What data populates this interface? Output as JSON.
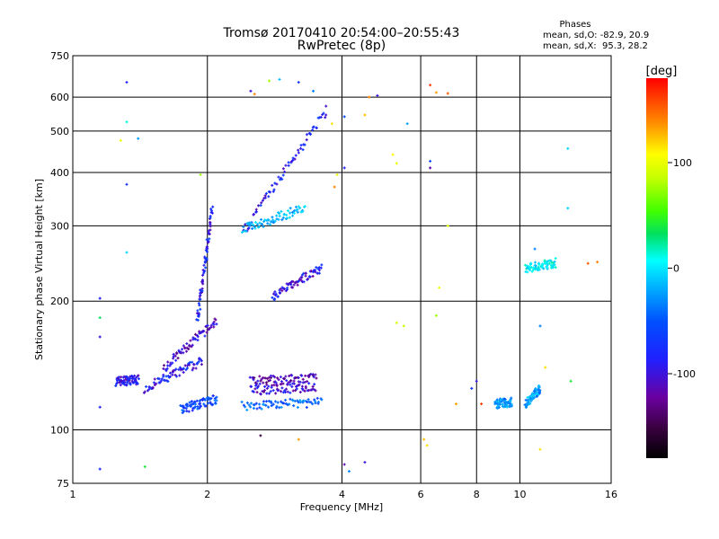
{
  "chart_data": {
    "type": "scatter",
    "title": "Tromsø 20170410 20:54:00–20:55:43",
    "subtitle": "RwPretec (8p)",
    "xlabel": "Frequency [MHz]",
    "ylabel": "Stationary phase Virtual Height [km]",
    "x_scale": "log",
    "y_scale": "log",
    "xlim": [
      1,
      16
    ],
    "ylim": [
      75,
      750
    ],
    "x_ticks": [
      1,
      2,
      4,
      6,
      8,
      10,
      16
    ],
    "x_tick_labels": [
      "1",
      "2",
      "4",
      "6",
      "8",
      "10",
      "16"
    ],
    "y_ticks": [
      75,
      100,
      200,
      300,
      400,
      500,
      600,
      750
    ],
    "y_tick_labels": [
      "75",
      "100",
      "200",
      "300",
      "400",
      "500",
      "600",
      "750"
    ],
    "grid": true,
    "phase_stats": {
      "heading": "Phases",
      "o_line": "mean, sd,O: -82.9, 20.9",
      "x_line": "mean, sd,X:  95.3, 28.2"
    },
    "colorbar": {
      "label": "[deg]",
      "ticks": [
        100,
        0,
        -100
      ],
      "tick_labels": [
        "100",
        "0",
        "-100"
      ],
      "range": [
        -180,
        180
      ],
      "colormap": "rainbow (black-purple-blue-cyan-green-yellow-orange-red)"
    },
    "traces": [
      {
        "x_range": [
          1.25,
          1.4
        ],
        "heights": [
          130,
          131
        ],
        "phase": -105
      },
      {
        "x_range": [
          1.45,
          1.95
        ],
        "heights": [
          125,
          145
        ],
        "phase": -100
      },
      {
        "x_range": [
          1.6,
          2.1
        ],
        "heights": [
          140,
          180
        ],
        "phase": -115
      },
      {
        "x_range": [
          1.9,
          2.05
        ],
        "heights": [
          180,
          330
        ],
        "phase": -100
      },
      {
        "x_range": [
          1.75,
          2.1
        ],
        "heights": [
          112,
          118
        ],
        "phase": -80
      },
      {
        "x_range": [
          2.4,
          3.6
        ],
        "heights": [
          114,
          116
        ],
        "phase": -70
      },
      {
        "x_range": [
          2.5,
          3.5
        ],
        "heights": [
          124,
          126
        ],
        "phase": -110
      },
      {
        "x_range": [
          2.5,
          3.5
        ],
        "heights": [
          130,
          132
        ],
        "phase": -120
      },
      {
        "x_range": [
          2.4,
          3.7
        ],
        "heights": [
          290,
          560
        ],
        "phase": -100
      },
      {
        "x_range": [
          2.8,
          3.6
        ],
        "heights": [
          205,
          240
        ],
        "phase": -105
      },
      {
        "x_range": [
          2.4,
          3.3
        ],
        "heights": [
          295,
          330
        ],
        "phase": -40
      },
      {
        "x_range": [
          8.8,
          9.6
        ],
        "heights": [
          115,
          116
        ],
        "phase": -55
      },
      {
        "x_range": [
          10.3,
          11.1
        ],
        "heights": [
          115,
          125
        ],
        "phase": -50
      },
      {
        "x_range": [
          10.3,
          12.0
        ],
        "heights": [
          238,
          246
        ],
        "phase": -20
      }
    ],
    "points": [
      {
        "x": 1.15,
        "y": 203,
        "p": -100
      },
      {
        "x": 1.15,
        "y": 183,
        "p": 10
      },
      {
        "x": 1.15,
        "y": 165,
        "p": -110
      },
      {
        "x": 1.15,
        "y": 113,
        "p": -100
      },
      {
        "x": 1.15,
        "y": 81,
        "p": -95
      },
      {
        "x": 1.32,
        "y": 650,
        "p": -100
      },
      {
        "x": 1.32,
        "y": 525,
        "p": -10
      },
      {
        "x": 1.32,
        "y": 375,
        "p": -90
      },
      {
        "x": 1.32,
        "y": 260,
        "p": -30
      },
      {
        "x": 1.28,
        "y": 475,
        "p": 90
      },
      {
        "x": 1.4,
        "y": 480,
        "p": -50
      },
      {
        "x": 1.45,
        "y": 82,
        "p": 20
      },
      {
        "x": 1.93,
        "y": 395,
        "p": 60
      },
      {
        "x": 2.5,
        "y": 620,
        "p": -110
      },
      {
        "x": 2.55,
        "y": 610,
        "p": 140
      },
      {
        "x": 2.75,
        "y": 655,
        "p": 60
      },
      {
        "x": 2.9,
        "y": 660,
        "p": -40
      },
      {
        "x": 3.2,
        "y": 650,
        "p": -90
      },
      {
        "x": 3.45,
        "y": 620,
        "p": -60
      },
      {
        "x": 3.2,
        "y": 95,
        "p": 130
      },
      {
        "x": 2.63,
        "y": 97,
        "p": -150
      },
      {
        "x": 3.8,
        "y": 520,
        "p": 110
      },
      {
        "x": 3.85,
        "y": 370,
        "p": 140
      },
      {
        "x": 3.9,
        "y": 395,
        "p": 90
      },
      {
        "x": 4.05,
        "y": 410,
        "p": -100
      },
      {
        "x": 4.05,
        "y": 540,
        "p": -80
      },
      {
        "x": 4.05,
        "y": 83,
        "p": -120
      },
      {
        "x": 4.15,
        "y": 80,
        "p": -60
      },
      {
        "x": 4.5,
        "y": 84,
        "p": -110
      },
      {
        "x": 4.5,
        "y": 545,
        "p": 120
      },
      {
        "x": 4.6,
        "y": 600,
        "p": 140
      },
      {
        "x": 4.8,
        "y": 605,
        "p": -110
      },
      {
        "x": 5.2,
        "y": 440,
        "p": 100
      },
      {
        "x": 5.3,
        "y": 420,
        "p": 90
      },
      {
        "x": 5.3,
        "y": 178,
        "p": 80
      },
      {
        "x": 5.5,
        "y": 175,
        "p": 70
      },
      {
        "x": 5.6,
        "y": 520,
        "p": -50
      },
      {
        "x": 6.3,
        "y": 640,
        "p": 160
      },
      {
        "x": 6.5,
        "y": 615,
        "p": 130
      },
      {
        "x": 6.9,
        "y": 612,
        "p": 150
      },
      {
        "x": 6.3,
        "y": 425,
        "p": -80
      },
      {
        "x": 6.3,
        "y": 410,
        "p": -120
      },
      {
        "x": 6.6,
        "y": 215,
        "p": 90
      },
      {
        "x": 6.5,
        "y": 185,
        "p": 60
      },
      {
        "x": 6.9,
        "y": 300,
        "p": 80
      },
      {
        "x": 6.1,
        "y": 95,
        "p": 120
      },
      {
        "x": 6.2,
        "y": 92,
        "p": 110
      },
      {
        "x": 7.2,
        "y": 115,
        "p": 130
      },
      {
        "x": 7.8,
        "y": 125,
        "p": -90
      },
      {
        "x": 8.0,
        "y": 130,
        "p": -110
      },
      {
        "x": 8.2,
        "y": 115,
        "p": 160
      },
      {
        "x": 11.1,
        "y": 175,
        "p": -60
      },
      {
        "x": 11.1,
        "y": 90,
        "p": 110
      },
      {
        "x": 12.8,
        "y": 455,
        "p": -30
      },
      {
        "x": 12.8,
        "y": 330,
        "p": -30
      },
      {
        "x": 14.2,
        "y": 245,
        "p": 150
      },
      {
        "x": 14.9,
        "y": 247,
        "p": 140
      },
      {
        "x": 13.0,
        "y": 130,
        "p": 20
      },
      {
        "x": 11.4,
        "y": 140,
        "p": 110
      },
      {
        "x": 10.8,
        "y": 265,
        "p": -60
      }
    ]
  }
}
